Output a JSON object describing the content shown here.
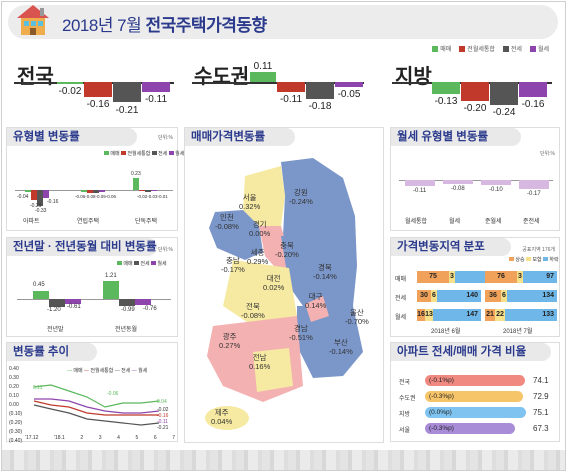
{
  "header": {
    "title_prefix": "2018년 7월",
    "title_main": "전국주택가격동향"
  },
  "legend": [
    "매매",
    "전월세통합",
    "전세",
    "월세"
  ],
  "colors": {
    "maemae": "#5cb85c",
    "jeonwolse": "#c0392b",
    "jeonse": "#555555",
    "wolse": "#8e44ad"
  },
  "regions": [
    {
      "name": "전국",
      "values": [
        "-0.02",
        "-0.16",
        "-0.21",
        "-0.11"
      ]
    },
    {
      "name": "수도권",
      "values": [
        "0.11",
        "-0.11",
        "-0.18",
        "-0.05"
      ]
    },
    {
      "name": "지방",
      "values": [
        "-0.13",
        "-0.20",
        "-0.24",
        "-0.16"
      ]
    }
  ],
  "type_change": {
    "title": "유형별 변동률",
    "unit": "단위:%",
    "groups": [
      {
        "label": "아파트",
        "values": [
          "-0.04",
          "-0.21",
          "-0.33",
          "-0.16"
        ]
      },
      {
        "label": "연립주택",
        "values": [
          "-0.06",
          "-0.08",
          "-0.09",
          "-0.06"
        ]
      },
      {
        "label": "단독주택",
        "values": [
          "0.23",
          "-0.02",
          "-0.03",
          "-0.01"
        ]
      }
    ]
  },
  "yoy": {
    "title": "전년말 · 전년동월 대비 변동률",
    "unit": "단위:%",
    "groups": [
      {
        "label": "전년말",
        "values": [
          "0.45",
          "-1.20",
          "-0.61"
        ]
      },
      {
        "label": "전년동월",
        "values": [
          "1.21",
          "-0.99",
          "-0.76"
        ]
      }
    ]
  },
  "trend": {
    "title": "변동률 추이",
    "ticks_y": [
      "0.40",
      "0.30",
      "0.20",
      "0.10",
      "0.00",
      "(0.10)",
      "(0.20)",
      "(0.30)",
      "(0.40)"
    ],
    "ticks_x": [
      "'17.12",
      "'18.1",
      "2",
      "3",
      "4",
      "5",
      "6",
      "7"
    ],
    "labels": [
      "0.11",
      "-0.02",
      "-0.03",
      "-0.06",
      "-0.16",
      "-0.11",
      "-0.21",
      "0.04"
    ]
  },
  "map": {
    "title": "매매가격변동률",
    "cells": [
      {
        "name": "서울",
        "value": "0.32%"
      },
      {
        "name": "인천",
        "value": "-0.08%"
      },
      {
        "name": "경기",
        "value": "0.00%"
      },
      {
        "name": "강원",
        "value": "-0.24%"
      },
      {
        "name": "세종",
        "value": "0.29%"
      },
      {
        "name": "충북",
        "value": "-0.20%"
      },
      {
        "name": "충남",
        "value": "-0.17%"
      },
      {
        "name": "대전",
        "value": "0.02%"
      },
      {
        "name": "경북",
        "value": "-0.14%"
      },
      {
        "name": "전북",
        "value": "-0.08%"
      },
      {
        "name": "대구",
        "value": "0.14%"
      },
      {
        "name": "울산",
        "value": "-0.70%"
      },
      {
        "name": "광주",
        "value": "0.27%"
      },
      {
        "name": "경남",
        "value": "-0.51%"
      },
      {
        "name": "부산",
        "value": "-0.14%"
      },
      {
        "name": "전남",
        "value": "0.16%"
      },
      {
        "name": "제주",
        "value": "0.04%"
      }
    ]
  },
  "monthly_rent": {
    "title": "월세 유형별 변동률",
    "unit": "단위:%",
    "items": [
      {
        "label": "월세통합",
        "value": "-0.11"
      },
      {
        "label": "월세",
        "value": "-0.08"
      },
      {
        "label": "준월세",
        "value": "-0.10"
      },
      {
        "label": "준전세",
        "value": "-0.17"
      }
    ]
  },
  "distribution": {
    "title": "가격변동지역 분포",
    "unit": "공표지역 176개",
    "legend": [
      "상승",
      "보합",
      "하락"
    ],
    "rows": [
      {
        "label": "매매",
        "jun": [
          "75",
          "3",
          "98"
        ],
        "jul": [
          "76",
          "3",
          "97"
        ]
      },
      {
        "label": "전세",
        "jun": [
          "30",
          "6",
          "140"
        ],
        "jul": [
          "36",
          "6",
          "134"
        ]
      },
      {
        "label": "월세",
        "jun": [
          "16",
          "13",
          "147"
        ],
        "jul": [
          "21",
          "22",
          "133"
        ]
      }
    ],
    "cols": [
      "2018년 6월",
      "2018년 7월"
    ]
  },
  "ratio": {
    "title": "아파트 전세/매매 가격 비율",
    "rows": [
      {
        "label": "전국",
        "delta": "(-0.1%p)",
        "value": "74.1"
      },
      {
        "label": "수도권",
        "delta": "(-0.3%p)",
        "value": "72.9"
      },
      {
        "label": "지방",
        "delta": "(0.0%p)",
        "value": "75.1"
      },
      {
        "label": "서울",
        "delta": "(-0.3%p)",
        "value": "67.3"
      }
    ]
  }
}
